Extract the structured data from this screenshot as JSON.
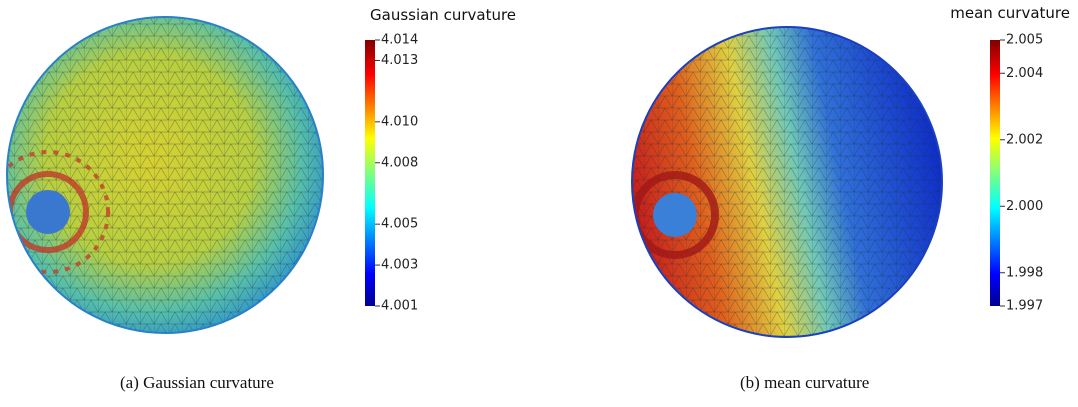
{
  "panels": [
    {
      "title": "Gaussian curvature",
      "ticks": [
        {
          "value": 4.014,
          "label": "4.014"
        },
        {
          "value": 4.013,
          "label": "4.013"
        },
        {
          "value": 4.01,
          "label": "4.010"
        },
        {
          "value": 4.008,
          "label": "4.008"
        },
        {
          "value": 4.005,
          "label": "4.005"
        },
        {
          "value": 4.003,
          "label": "4.003"
        },
        {
          "value": 4.001,
          "label": "4.001"
        }
      ],
      "caption": "(a)  Gaussian curvature"
    },
    {
      "title": "mean curvature",
      "ticks": [
        {
          "value": 2.005,
          "label": "2.005"
        },
        {
          "value": 2.004,
          "label": "2.004"
        },
        {
          "value": 2.002,
          "label": "2.002"
        },
        {
          "value": 2.0,
          "label": "2.000"
        },
        {
          "value": 1.998,
          "label": "1.998"
        },
        {
          "value": 1.997,
          "label": "1.997"
        }
      ],
      "caption": "(b)  mean curvature"
    }
  ]
}
